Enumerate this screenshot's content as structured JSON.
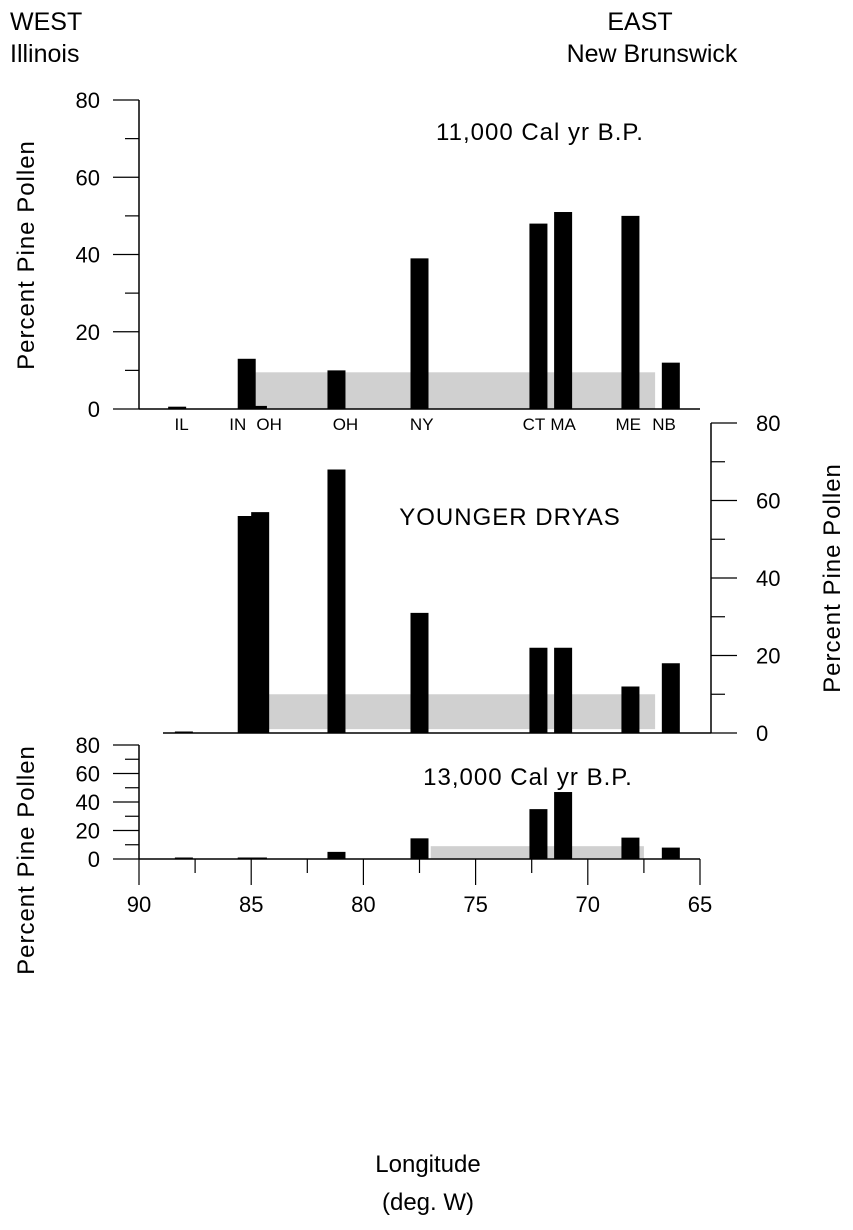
{
  "header": {
    "west_direction": "WEST",
    "west_place": "Illinois",
    "east_direction": "EAST",
    "east_place": "New Brunswick"
  },
  "chart_data": [
    {
      "type": "bar",
      "title": "11,000 Cal yr B.P.",
      "ylabel": "Percent Pine Pollen",
      "ylim": [
        0,
        80
      ],
      "y_ticks": [
        "0",
        "20",
        "40",
        "60",
        "80"
      ],
      "axis_side": "left",
      "bars": [
        {
          "x": 88.3,
          "value": 0.6
        },
        {
          "x": 85.2,
          "value": 13
        },
        {
          "x": 84.7,
          "value": 0.8
        },
        {
          "x": 81.2,
          "value": 10
        },
        {
          "x": 77.5,
          "value": 39
        },
        {
          "x": 72.2,
          "value": 48
        },
        {
          "x": 71.1,
          "value": 51
        },
        {
          "x": 68.1,
          "value": 50
        },
        {
          "x": 66.3,
          "value": 12
        }
      ],
      "band": {
        "from": 84.8,
        "to": 67.0,
        "low": 0,
        "high": 9.5,
        "color": "#d0d0d0"
      },
      "site_labels": [
        {
          "text": "IL",
          "x": 88.1
        },
        {
          "text": "IN",
          "x": 85.6
        },
        {
          "text": "OH",
          "x": 84.2
        },
        {
          "text": "OH",
          "x": 80.8
        },
        {
          "text": "NY",
          "x": 77.4
        },
        {
          "text": "CT",
          "x": 72.4
        },
        {
          "text": "MA",
          "x": 71.1
        },
        {
          "text": "ME",
          "x": 68.2
        },
        {
          "text": "NB",
          "x": 66.6
        }
      ]
    },
    {
      "type": "bar",
      "title": "YOUNGER DRYAS",
      "ylabel": "Percent Pine Pollen",
      "ylim": [
        0,
        80
      ],
      "y_ticks": [
        "0",
        "20",
        "40",
        "60",
        "80"
      ],
      "axis_side": "right",
      "bars": [
        {
          "x": 88.0,
          "value": 0.3
        },
        {
          "x": 85.2,
          "value": 56
        },
        {
          "x": 84.6,
          "value": 57
        },
        {
          "x": 81.2,
          "value": 68
        },
        {
          "x": 77.5,
          "value": 31
        },
        {
          "x": 72.2,
          "value": 22
        },
        {
          "x": 71.1,
          "value": 22
        },
        {
          "x": 68.1,
          "value": 12
        },
        {
          "x": 66.3,
          "value": 18
        }
      ],
      "band": {
        "from": 84.6,
        "to": 67.0,
        "low": 1,
        "high": 10,
        "color": "#d0d0d0"
      }
    },
    {
      "type": "bar",
      "title": "13,000 Cal yr B.P.",
      "ylabel": "Percent Pine Pollen",
      "xlabel_line1": "Longitude",
      "xlabel_line2": "(deg. W)",
      "ylim": [
        0,
        80
      ],
      "y_ticks": [
        "0",
        "20",
        "40",
        "60",
        "80"
      ],
      "x_ticks": [
        "90",
        "85",
        "80",
        "75",
        "70",
        "65"
      ],
      "xlim": [
        90,
        65
      ],
      "axis_side": "left",
      "bars": [
        {
          "x": 88.0,
          "value": 0.3
        },
        {
          "x": 85.2,
          "value": 0.5
        },
        {
          "x": 84.7,
          "value": 0.7
        },
        {
          "x": 81.2,
          "value": 5
        },
        {
          "x": 77.5,
          "value": 14.5
        },
        {
          "x": 72.2,
          "value": 35
        },
        {
          "x": 71.1,
          "value": 47
        },
        {
          "x": 68.1,
          "value": 15
        },
        {
          "x": 66.3,
          "value": 8
        }
      ],
      "band": {
        "from": 77.0,
        "to": 67.5,
        "low": 0.5,
        "high": 9,
        "color": "#d0d0d0"
      }
    }
  ]
}
